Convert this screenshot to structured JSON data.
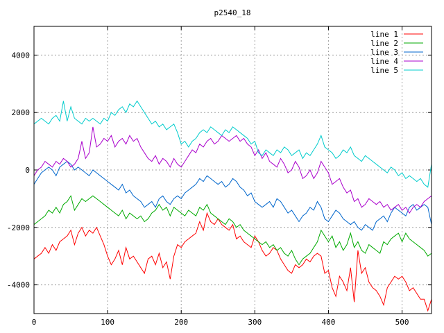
{
  "chart_data": {
    "type": "line",
    "title": "p2540_18",
    "xlabel": "",
    "ylabel": "",
    "xlim": [
      0,
      540
    ],
    "ylim": [
      -5000,
      5000
    ],
    "xticks": [
      0,
      100,
      200,
      300,
      400,
      500
    ],
    "yticks": [
      -4000,
      -2000,
      0,
      2000,
      4000
    ],
    "grid": true,
    "legend_position": "top-right",
    "series": [
      {
        "name": "line 1",
        "color": "#ff0000",
        "x": [
          0,
          5,
          10,
          15,
          20,
          25,
          30,
          35,
          40,
          45,
          50,
          55,
          60,
          65,
          70,
          75,
          80,
          85,
          90,
          95,
          100,
          105,
          110,
          115,
          120,
          125,
          130,
          135,
          140,
          145,
          150,
          155,
          160,
          165,
          170,
          175,
          180,
          185,
          190,
          195,
          200,
          205,
          210,
          215,
          220,
          225,
          230,
          235,
          240,
          245,
          250,
          255,
          260,
          265,
          270,
          275,
          280,
          285,
          290,
          295,
          300,
          305,
          310,
          315,
          320,
          325,
          330,
          335,
          340,
          345,
          350,
          355,
          360,
          365,
          370,
          375,
          380,
          385,
          390,
          395,
          400,
          405,
          410,
          415,
          420,
          425,
          430,
          435,
          440,
          445,
          450,
          455,
          460,
          465,
          470,
          475,
          480,
          485,
          490,
          495,
          500,
          505,
          510,
          515,
          520,
          525,
          530,
          535,
          540
        ],
        "y": [
          -3100,
          -3000,
          -2900,
          -2700,
          -2900,
          -2600,
          -2800,
          -2500,
          -2400,
          -2300,
          -2100,
          -2600,
          -2200,
          -2000,
          -2300,
          -2100,
          -2200,
          -2000,
          -2300,
          -2600,
          -3000,
          -3300,
          -3100,
          -2800,
          -3300,
          -2700,
          -3100,
          -3000,
          -3200,
          -3400,
          -3600,
          -3100,
          -3000,
          -3300,
          -2900,
          -3400,
          -3200,
          -3800,
          -3000,
          -2600,
          -2700,
          -2500,
          -2400,
          -2300,
          -2200,
          -1800,
          -2100,
          -1500,
          -1800,
          -1900,
          -1700,
          -1900,
          -2000,
          -2100,
          -1900,
          -2400,
          -2300,
          -2500,
          -2600,
          -2700,
          -2300,
          -2500,
          -2800,
          -3000,
          -2900,
          -2700,
          -2800,
          -3100,
          -3300,
          -3500,
          -3600,
          -3300,
          -3400,
          -3300,
          -3100,
          -3200,
          -3000,
          -2900,
          -3000,
          -3600,
          -3500,
          -4100,
          -4400,
          -3700,
          -3900,
          -4200,
          -3400,
          -4600,
          -2800,
          -3600,
          -3400,
          -3900,
          -4100,
          -4200,
          -4400,
          -4700,
          -4100,
          -3900,
          -3700,
          -3800,
          -3700,
          -3900,
          -4200,
          -4100,
          -4300,
          -4500,
          -4500,
          -4900,
          -4500
        ]
      },
      {
        "name": "line 2",
        "color": "#00aa00",
        "x": [
          0,
          5,
          10,
          15,
          20,
          25,
          30,
          35,
          40,
          45,
          50,
          55,
          60,
          65,
          70,
          75,
          80,
          85,
          90,
          95,
          100,
          105,
          110,
          115,
          120,
          125,
          130,
          135,
          140,
          145,
          150,
          155,
          160,
          165,
          170,
          175,
          180,
          185,
          190,
          195,
          200,
          205,
          210,
          215,
          220,
          225,
          230,
          235,
          240,
          245,
          250,
          255,
          260,
          265,
          270,
          275,
          280,
          285,
          290,
          295,
          300,
          305,
          310,
          315,
          320,
          325,
          330,
          335,
          340,
          345,
          350,
          355,
          360,
          365,
          370,
          375,
          380,
          385,
          390,
          395,
          400,
          405,
          410,
          415,
          420,
          425,
          430,
          435,
          440,
          445,
          450,
          455,
          460,
          465,
          470,
          475,
          480,
          485,
          490,
          495,
          500,
          505,
          510,
          515,
          520,
          525,
          530,
          535,
          540
        ],
        "y": [
          -1900,
          -1800,
          -1700,
          -1600,
          -1400,
          -1500,
          -1300,
          -1500,
          -1200,
          -1100,
          -900,
          -1400,
          -1200,
          -1000,
          -1100,
          -1000,
          -900,
          -1000,
          -1100,
          -1200,
          -1300,
          -1400,
          -1500,
          -1600,
          -1400,
          -1700,
          -1500,
          -1600,
          -1700,
          -1600,
          -1800,
          -1700,
          -1500,
          -1400,
          -1200,
          -1400,
          -1300,
          -1600,
          -1300,
          -1400,
          -1500,
          -1600,
          -1400,
          -1500,
          -1600,
          -1300,
          -1400,
          -1200,
          -1500,
          -1600,
          -1700,
          -1800,
          -1900,
          -1700,
          -1800,
          -2000,
          -1900,
          -2100,
          -2200,
          -2300,
          -2400,
          -2500,
          -2600,
          -2500,
          -2700,
          -2600,
          -2800,
          -2700,
          -2900,
          -3000,
          -2800,
          -3100,
          -3300,
          -3100,
          -3000,
          -2900,
          -2700,
          -2500,
          -2100,
          -2300,
          -2500,
          -2300,
          -2700,
          -2500,
          -2800,
          -2600,
          -2200,
          -2700,
          -2500,
          -2800,
          -2900,
          -2600,
          -2700,
          -2800,
          -2900,
          -2500,
          -2600,
          -2400,
          -2300,
          -2200,
          -2500,
          -2200,
          -2400,
          -2500,
          -2600,
          -2700,
          -2800,
          -3000,
          -2900
        ]
      },
      {
        "name": "line 3",
        "color": "#0066cc",
        "x": [
          0,
          5,
          10,
          15,
          20,
          25,
          30,
          35,
          40,
          45,
          50,
          55,
          60,
          65,
          70,
          75,
          80,
          85,
          90,
          95,
          100,
          105,
          110,
          115,
          120,
          125,
          130,
          135,
          140,
          145,
          150,
          155,
          160,
          165,
          170,
          175,
          180,
          185,
          190,
          195,
          200,
          205,
          210,
          215,
          220,
          225,
          230,
          235,
          240,
          245,
          250,
          255,
          260,
          265,
          270,
          275,
          280,
          285,
          290,
          295,
          300,
          305,
          310,
          315,
          320,
          325,
          330,
          335,
          340,
          345,
          350,
          355,
          360,
          365,
          370,
          375,
          380,
          385,
          390,
          395,
          400,
          405,
          410,
          415,
          420,
          425,
          430,
          435,
          440,
          445,
          450,
          455,
          460,
          465,
          470,
          475,
          480,
          485,
          490,
          495,
          500,
          505,
          510,
          515,
          520,
          525,
          530,
          535,
          540
        ],
        "y": [
          -500,
          -300,
          -100,
          0,
          100,
          0,
          -200,
          100,
          200,
          300,
          200,
          0,
          100,
          0,
          -100,
          -200,
          0,
          -100,
          -200,
          -300,
          -400,
          -500,
          -600,
          -700,
          -500,
          -800,
          -700,
          -900,
          -1000,
          -1100,
          -1300,
          -1200,
          -1100,
          -1300,
          -1000,
          -900,
          -1100,
          -1200,
          -1000,
          -900,
          -1000,
          -800,
          -700,
          -600,
          -500,
          -300,
          -400,
          -200,
          -300,
          -400,
          -500,
          -400,
          -600,
          -500,
          -300,
          -400,
          -600,
          -700,
          -900,
          -800,
          -1100,
          -1200,
          -1300,
          -1200,
          -1100,
          -1300,
          -1000,
          -1100,
          -1300,
          -1500,
          -1400,
          -1600,
          -1800,
          -1600,
          -1500,
          -1300,
          -1400,
          -1100,
          -1300,
          -1700,
          -1800,
          -1600,
          -1400,
          -1500,
          -1700,
          -1800,
          -1900,
          -1800,
          -2000,
          -2100,
          -1900,
          -2000,
          -2100,
          -1800,
          -1700,
          -1600,
          -1800,
          -1500,
          -1300,
          -1400,
          -1500,
          -1600,
          -1300,
          -1200,
          -1400,
          -1300,
          -1200,
          -1300,
          -1900
        ]
      },
      {
        "name": "line 4",
        "color": "#aa00cc",
        "x": [
          0,
          5,
          10,
          15,
          20,
          25,
          30,
          35,
          40,
          45,
          50,
          55,
          60,
          65,
          70,
          75,
          80,
          85,
          90,
          95,
          100,
          105,
          110,
          115,
          120,
          125,
          130,
          135,
          140,
          145,
          150,
          155,
          160,
          165,
          170,
          175,
          180,
          185,
          190,
          195,
          200,
          205,
          210,
          215,
          220,
          225,
          230,
          235,
          240,
          245,
          250,
          255,
          260,
          265,
          270,
          275,
          280,
          285,
          290,
          295,
          300,
          305,
          310,
          315,
          320,
          325,
          330,
          335,
          340,
          345,
          350,
          355,
          360,
          365,
          370,
          375,
          380,
          385,
          390,
          395,
          400,
          405,
          410,
          415,
          420,
          425,
          430,
          435,
          440,
          445,
          450,
          455,
          460,
          465,
          470,
          475,
          480,
          485,
          490,
          495,
          500,
          505,
          510,
          515,
          520,
          525,
          530,
          535,
          540
        ],
        "y": [
          -200,
          0,
          100,
          300,
          200,
          100,
          300,
          200,
          400,
          300,
          100,
          200,
          400,
          1000,
          400,
          600,
          1500,
          800,
          900,
          1100,
          1000,
          1200,
          800,
          1000,
          1100,
          900,
          1200,
          1000,
          1100,
          800,
          600,
          400,
          300,
          500,
          200,
          400,
          300,
          100,
          400,
          200,
          100,
          300,
          500,
          700,
          600,
          900,
          800,
          1000,
          1100,
          900,
          1000,
          1200,
          1100,
          1000,
          1100,
          1200,
          1000,
          1100,
          900,
          800,
          500,
          700,
          400,
          600,
          300,
          200,
          100,
          400,
          200,
          -100,
          0,
          300,
          100,
          -300,
          -200,
          0,
          -300,
          -100,
          300,
          100,
          -100,
          -500,
          -400,
          -300,
          -600,
          -800,
          -700,
          -1100,
          -1000,
          -1300,
          -1200,
          -1000,
          -1100,
          -1200,
          -1100,
          -1300,
          -1200,
          -1400,
          -1300,
          -1200,
          -1400,
          -1300,
          -1500,
          -1300,
          -1200,
          -1300,
          -1100,
          -1000,
          -900
        ]
      },
      {
        "name": "line 5",
        "color": "#00cccc",
        "x": [
          0,
          5,
          10,
          15,
          20,
          25,
          30,
          35,
          40,
          45,
          50,
          55,
          60,
          65,
          70,
          75,
          80,
          85,
          90,
          95,
          100,
          105,
          110,
          115,
          120,
          125,
          130,
          135,
          140,
          145,
          150,
          155,
          160,
          165,
          170,
          175,
          180,
          185,
          190,
          195,
          200,
          205,
          210,
          215,
          220,
          225,
          230,
          235,
          240,
          245,
          250,
          255,
          260,
          265,
          270,
          275,
          280,
          285,
          290,
          295,
          300,
          305,
          310,
          315,
          320,
          325,
          330,
          335,
          340,
          345,
          350,
          355,
          360,
          365,
          370,
          375,
          380,
          385,
          390,
          395,
          400,
          405,
          410,
          415,
          420,
          425,
          430,
          435,
          440,
          445,
          450,
          455,
          460,
          465,
          470,
          475,
          480,
          485,
          490,
          495,
          500,
          505,
          510,
          515,
          520,
          525,
          530,
          535,
          540
        ],
        "y": [
          1600,
          1700,
          1800,
          1700,
          1600,
          1800,
          1900,
          1700,
          2400,
          1700,
          2200,
          1800,
          1700,
          1600,
          1800,
          1700,
          1800,
          1700,
          1600,
          1800,
          1700,
          2000,
          1900,
          2100,
          2200,
          2000,
          2300,
          2200,
          2400,
          2200,
          2000,
          1800,
          1600,
          1700,
          1500,
          1600,
          1400,
          1500,
          1600,
          1300,
          900,
          1000,
          800,
          1000,
          1100,
          1300,
          1400,
          1300,
          1500,
          1400,
          1300,
          1200,
          1400,
          1300,
          1500,
          1400,
          1300,
          1200,
          1100,
          900,
          1000,
          600,
          500,
          700,
          600,
          500,
          700,
          600,
          800,
          700,
          500,
          600,
          700,
          400,
          600,
          500,
          700,
          900,
          1200,
          800,
          700,
          600,
          400,
          500,
          700,
          600,
          800,
          500,
          400,
          300,
          500,
          400,
          300,
          200,
          100,
          0,
          -100,
          100,
          0,
          -200,
          -100,
          -300,
          -200,
          -300,
          -400,
          -300,
          -500,
          -600,
          200
        ]
      }
    ]
  }
}
